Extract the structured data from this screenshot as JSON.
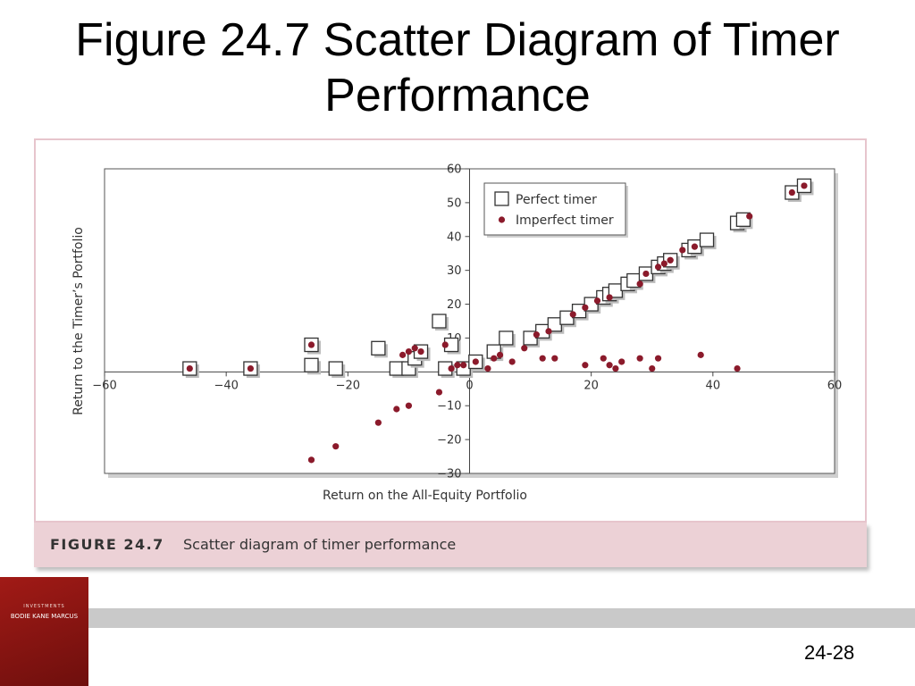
{
  "slide": {
    "title": "Figure 24.7 Scatter Diagram of Timer Performance",
    "page_number": "24-28"
  },
  "figure": {
    "label": "FIGURE 24.7",
    "caption": "Scatter diagram of timer performance"
  },
  "logo": {
    "tagline": "INVESTMENTS",
    "authors": "BODIE  KANE  MARCUS"
  },
  "chart_data": {
    "type": "scatter",
    "title": "",
    "xlabel": "Return on the All-Equity Portfolio",
    "ylabel": "Return to the Timer’s Portfolio",
    "xlim": [
      -60,
      60
    ],
    "ylim": [
      -30,
      60
    ],
    "x_ticks": [
      -60,
      -40,
      -20,
      0,
      20,
      40,
      60
    ],
    "x_tick_labels": [
      "−60",
      "−40",
      "−20",
      "0",
      "20",
      "40",
      "60"
    ],
    "y_ticks": [
      -30,
      -20,
      -10,
      10,
      20,
      30,
      40,
      50,
      60
    ],
    "y_tick_labels": [
      "−30",
      "−20",
      "−10",
      "10",
      "20",
      "30",
      "40",
      "50",
      "60"
    ],
    "grid": false,
    "legend_position": "top-right",
    "series": [
      {
        "name": "Perfect timer",
        "marker": "square",
        "color": "#333333",
        "x": [
          -46,
          -36,
          -26,
          -26,
          -22,
          -15,
          -12,
          -10,
          -9,
          -8,
          -5,
          -4,
          -3,
          -1,
          1,
          4,
          6,
          10,
          12,
          14,
          16,
          18,
          20,
          22,
          23,
          24,
          26,
          27,
          29,
          31,
          32,
          33,
          36,
          37,
          39,
          44,
          45,
          53,
          55
        ],
        "y": [
          1,
          1,
          8,
          2,
          1,
          7,
          1,
          1,
          4,
          6,
          15,
          1,
          8,
          1,
          3,
          6,
          10,
          10,
          12,
          14,
          16,
          18,
          20,
          22,
          23,
          24,
          26,
          27,
          29,
          31,
          32,
          33,
          36,
          37,
          39,
          44,
          45,
          53,
          55
        ]
      },
      {
        "name": "Imperfect timer",
        "marker": "dot",
        "color": "#8b1a2b",
        "x": [
          -46,
          -36,
          -26,
          -26,
          -22,
          -15,
          -12,
          -11,
          -10,
          -10,
          -9,
          -8,
          -5,
          -4,
          -3,
          -2,
          -1,
          1,
          3,
          4,
          5,
          7,
          9,
          11,
          12,
          13,
          14,
          17,
          19,
          19,
          21,
          22,
          23,
          23,
          24,
          25,
          28,
          28,
          29,
          30,
          31,
          31,
          32,
          33,
          33,
          35,
          37,
          38,
          44,
          46,
          53,
          55
        ],
        "y": [
          1,
          1,
          8,
          -26,
          -22,
          -15,
          -11,
          5,
          -10,
          6,
          7,
          6,
          -6,
          8,
          1,
          2,
          2,
          3,
          1,
          4,
          5,
          3,
          7,
          11,
          4,
          12,
          4,
          17,
          19,
          2,
          21,
          4,
          2,
          22,
          1,
          3,
          26,
          4,
          29,
          1,
          4,
          31,
          32,
          33,
          33,
          36,
          37,
          5,
          1,
          46,
          53,
          55
        ]
      }
    ]
  }
}
